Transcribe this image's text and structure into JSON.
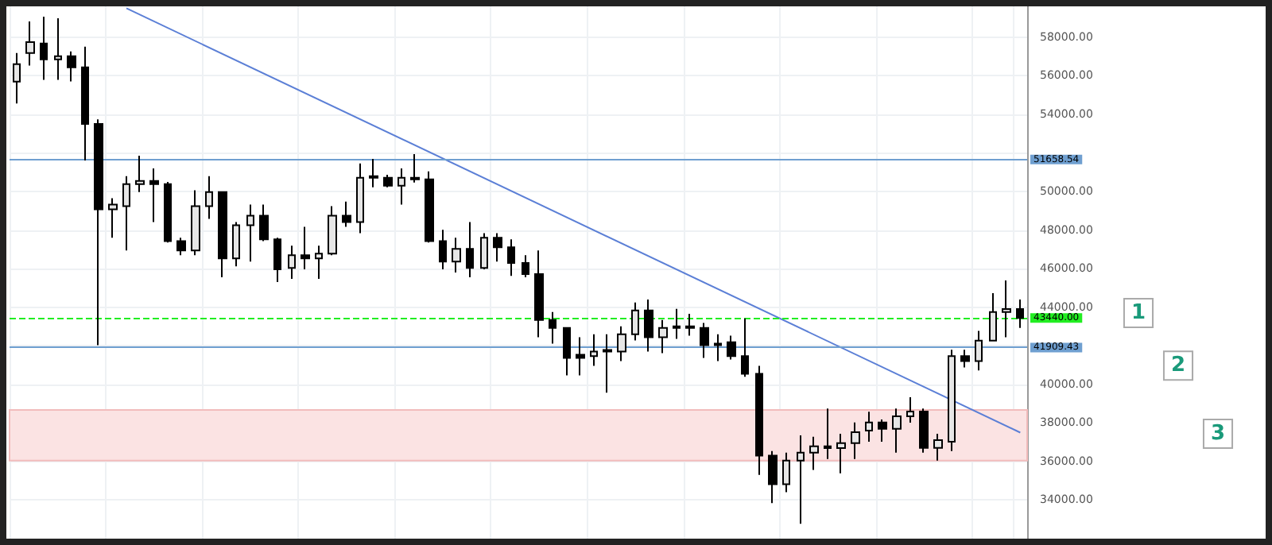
{
  "chart_data": {
    "type": "candlestick",
    "categories": [
      null,
      null,
      null,
      null,
      null,
      null,
      null,
      null,
      null,
      null,
      null,
      null,
      null,
      null,
      null,
      null,
      null,
      null,
      null,
      null,
      null,
      null,
      null,
      null,
      null,
      null,
      null,
      null,
      null,
      null,
      null,
      null,
      null,
      null,
      null,
      null,
      null,
      null,
      null,
      null,
      null,
      null,
      null,
      null,
      null,
      null,
      null,
      null,
      null,
      null,
      null,
      null,
      null,
      null,
      null,
      null,
      null,
      null,
      null,
      null,
      null,
      null,
      null,
      null,
      null,
      null,
      null,
      null,
      null,
      null,
      null,
      null,
      null,
      null
    ],
    "ohlc": [
      [
        55700,
        57180,
        54560,
        56600
      ],
      [
        57180,
        58820,
        56530,
        57750
      ],
      [
        57670,
        59060,
        55790,
        56850
      ],
      [
        56850,
        58980,
        55790,
        57020
      ],
      [
        57020,
        57260,
        55710,
        56440
      ],
      [
        56440,
        57510,
        51610,
        53500
      ],
      [
        53500,
        53740,
        42030,
        49070
      ],
      [
        49070,
        49650,
        47600,
        49320
      ],
      [
        49240,
        50790,
        46940,
        50380
      ],
      [
        50380,
        51860,
        49970,
        50550
      ],
      [
        50550,
        51200,
        48420,
        50380
      ],
      [
        50380,
        50500,
        47350,
        47430
      ],
      [
        47430,
        47600,
        46700,
        46940
      ],
      [
        46940,
        50060,
        46700,
        49240
      ],
      [
        49240,
        50790,
        48580,
        49970
      ],
      [
        49970,
        50000,
        45550,
        46530
      ],
      [
        46530,
        48420,
        46120,
        48250
      ],
      [
        48250,
        49320,
        46370,
        48750
      ],
      [
        48750,
        49320,
        47430,
        47520
      ],
      [
        47520,
        47600,
        45310,
        45960
      ],
      [
        46040,
        47190,
        45470,
        46700
      ],
      [
        46700,
        48170,
        45960,
        46530
      ],
      [
        46530,
        47190,
        45470,
        46780
      ],
      [
        46780,
        49240,
        46700,
        48750
      ],
      [
        48750,
        49480,
        48170,
        48420
      ],
      [
        48420,
        51450,
        47840,
        50710
      ],
      [
        50710,
        51690,
        50220,
        50790
      ],
      [
        50710,
        50870,
        50220,
        50300
      ],
      [
        50300,
        51200,
        49320,
        50710
      ],
      [
        50710,
        51940,
        50470,
        50630
      ],
      [
        50630,
        51040,
        47350,
        47430
      ],
      [
        47430,
        48010,
        45960,
        46370
      ],
      [
        46370,
        47600,
        45800,
        47030
      ],
      [
        47030,
        48420,
        45550,
        46040
      ],
      [
        46040,
        47840,
        45960,
        47600
      ],
      [
        47600,
        47840,
        46370,
        47110
      ],
      [
        47110,
        47520,
        45630,
        46290
      ],
      [
        46290,
        46700,
        45550,
        45720
      ],
      [
        45720,
        46940,
        42440,
        43340
      ],
      [
        43340,
        43750,
        42110,
        42930
      ],
      [
        42930,
        42930,
        40470,
        41370
      ],
      [
        41540,
        42440,
        40470,
        41370
      ],
      [
        41460,
        42600,
        40960,
        41700
      ],
      [
        41780,
        42600,
        39570,
        41700
      ],
      [
        41700,
        43010,
        41210,
        42600
      ],
      [
        42600,
        44240,
        42280,
        43830
      ],
      [
        43830,
        44400,
        41700,
        42440
      ],
      [
        42440,
        43340,
        41620,
        42930
      ],
      [
        42930,
        43920,
        42360,
        43010
      ],
      [
        43010,
        43660,
        42520,
        42930
      ],
      [
        42930,
        43180,
        41370,
        42030
      ],
      [
        42030,
        42600,
        41210,
        42110
      ],
      [
        42190,
        42520,
        41290,
        41460
      ],
      [
        41460,
        43420,
        40390,
        40550
      ],
      [
        40550,
        40960,
        35310,
        36300
      ],
      [
        36300,
        36540,
        33840,
        34820
      ],
      [
        34820,
        36460,
        34410,
        36050
      ],
      [
        36050,
        37360,
        32770,
        36460
      ],
      [
        36460,
        37280,
        35560,
        36790
      ],
      [
        36790,
        38750,
        36130,
        36700
      ],
      [
        36700,
        37440,
        35390,
        36950
      ],
      [
        36950,
        38020,
        36130,
        37520
      ],
      [
        37600,
        38580,
        37030,
        38020
      ],
      [
        38020,
        38180,
        37030,
        37690
      ],
      [
        37690,
        38750,
        36460,
        38340
      ],
      [
        38340,
        39330,
        38010,
        38590
      ],
      [
        38590,
        38750,
        36460,
        36710
      ],
      [
        36710,
        37440,
        36050,
        37110
      ],
      [
        37030,
        41790,
        36540,
        41460
      ],
      [
        41460,
        41790,
        40880,
        41210
      ],
      [
        41210,
        42770,
        40720,
        42270
      ],
      [
        42270,
        44730,
        42270,
        43750
      ],
      [
        43750,
        45390,
        42440,
        43910
      ],
      [
        43910,
        44400,
        42930,
        43440
      ]
    ],
    "series": [
      {
        "type": "line",
        "color": "#5b7fd6",
        "values": [
          null,
          null,
          null,
          null,
          null,
          null,
          null,
          null,
          59500,
          null,
          null,
          null,
          null,
          null,
          null,
          null,
          null,
          null,
          null,
          null,
          null,
          null,
          null,
          null,
          null,
          null,
          null,
          null,
          null,
          null,
          null,
          null,
          null,
          null,
          null,
          null,
          null,
          null,
          null,
          null,
          null,
          null,
          null,
          null,
          null,
          null,
          null,
          null,
          null,
          null,
          null,
          null,
          null,
          null,
          null,
          null,
          null,
          null,
          null,
          null,
          null,
          null,
          null,
          null,
          null,
          null,
          null,
          null,
          null,
          null,
          null,
          null,
          null,
          37500
        ]
      }
    ],
    "ylim": [
      32000,
      59600
    ],
    "yticks": [
      {
        "value": 34000,
        "label": "34000.00"
      },
      {
        "value": 36000,
        "label": "36000.00"
      },
      {
        "value": 38000,
        "label": "38000.00"
      },
      {
        "value": 40000,
        "label": "40000.00"
      },
      {
        "value": 42000,
        "label": null
      },
      {
        "value": 44000,
        "label": "44000.00"
      },
      {
        "value": 46000,
        "label": "46000.00"
      },
      {
        "value": 48000,
        "label": "48000.00"
      },
      {
        "value": 50000,
        "label": "50000.00"
      },
      {
        "value": 52000,
        "label": null
      },
      {
        "value": 54000,
        "label": "54000.00"
      },
      {
        "value": 56000,
        "label": "56000.00"
      },
      {
        "value": 58000,
        "label": "58000.00"
      }
    ],
    "tick_labels": "y",
    "grid": true,
    "ref_lines": [
      {
        "axis": "y",
        "value": 51658.54,
        "label": "51658.54",
        "color": "#6f9fd0"
      },
      {
        "axis": "y",
        "value": 41909.43,
        "label": "41909.43",
        "color": "#6f9fd0"
      },
      {
        "axis": "y",
        "value": 43440,
        "label": "43440.00",
        "color": "#22ee22",
        "line_style": "dashed"
      }
    ],
    "bands": [
      {
        "axis": "y",
        "from": 36050,
        "to": 38670,
        "color": "#fbe3e3"
      }
    ],
    "annotations": [
      "1",
      "2",
      "3"
    ]
  }
}
